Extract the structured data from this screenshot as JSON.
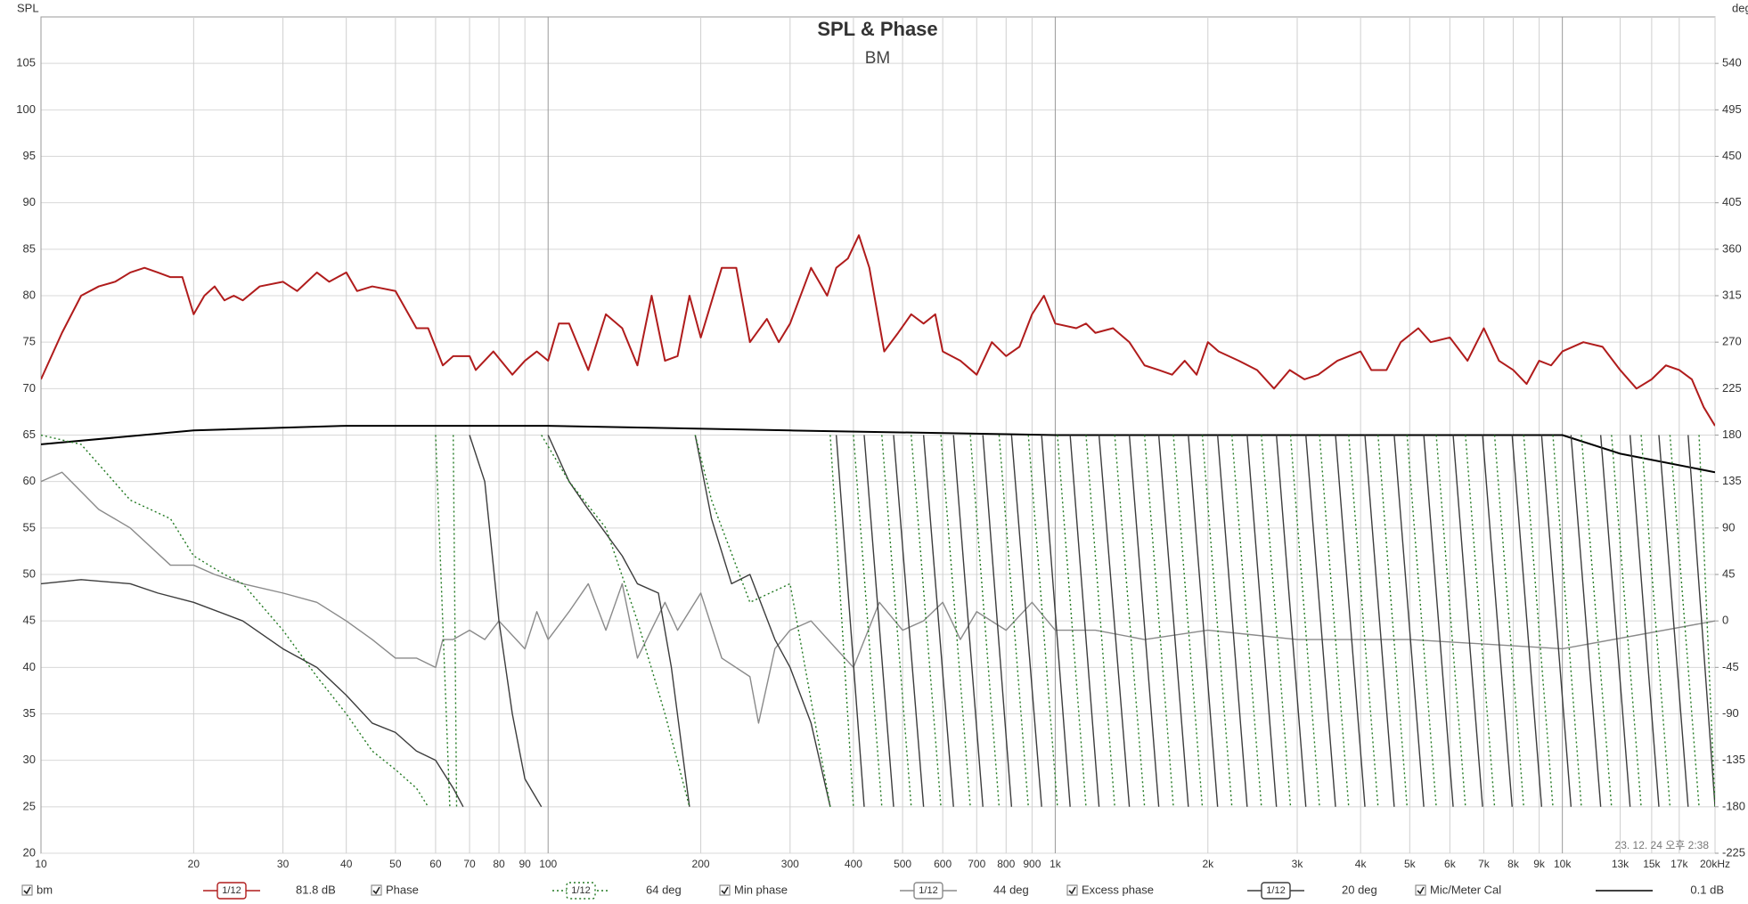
{
  "chart_data": {
    "type": "line",
    "title": "SPL & Phase",
    "subtitle": "BM",
    "y_label": "SPL",
    "y2_label": "deg",
    "timestamp": "23. 12. 24 오후 2:38",
    "xscale": "log",
    "grid": true,
    "xlim": [
      10,
      20000
    ],
    "ylim": [
      20,
      110
    ],
    "y2lim": [
      -225,
      585
    ],
    "xticks": [
      10,
      20,
      30,
      40,
      50,
      60,
      70,
      80,
      90,
      100,
      200,
      300,
      400,
      500,
      600,
      700,
      800,
      900,
      {
        "value": 1000,
        "label": "1k"
      },
      {
        "value": 2000,
        "label": "2k"
      },
      {
        "value": 3000,
        "label": "3k"
      },
      {
        "value": 4000,
        "label": "4k"
      },
      {
        "value": 5000,
        "label": "5k"
      },
      {
        "value": 6000,
        "label": "6k"
      },
      {
        "value": 7000,
        "label": "7k"
      },
      {
        "value": 8000,
        "label": "8k"
      },
      {
        "value": 9000,
        "label": "9k"
      },
      {
        "value": 10000,
        "label": "10k"
      },
      {
        "value": 13000,
        "label": "13k"
      },
      {
        "value": 15000,
        "label": "15k"
      },
      {
        "value": 17000,
        "label": "17k"
      },
      {
        "value": 20000,
        "label": "20kHz"
      }
    ],
    "yticks": [
      20,
      25,
      30,
      35,
      40,
      45,
      50,
      55,
      60,
      65,
      70,
      75,
      80,
      85,
      90,
      95,
      100,
      105
    ],
    "y2ticks": [
      -225,
      -180,
      -135,
      -90,
      -45,
      0,
      45,
      90,
      135,
      180,
      225,
      270,
      315,
      360,
      405,
      450,
      495,
      540
    ],
    "series": [
      {
        "name": "bm",
        "color": "#b01c1c",
        "axis": "y",
        "dash": "solid",
        "smoothing": "1/12",
        "readout": "81.8 dB",
        "x": [
          10,
          11,
          12,
          13,
          14,
          15,
          16,
          17,
          18,
          19,
          20,
          21,
          22,
          23,
          24,
          25,
          27,
          30,
          32,
          35,
          37,
          40,
          42,
          45,
          50,
          55,
          58,
          62,
          65,
          70,
          72,
          78,
          85,
          90,
          95,
          100,
          105,
          110,
          120,
          130,
          140,
          150,
          160,
          170,
          180,
          190,
          200,
          220,
          235,
          250,
          270,
          285,
          300,
          330,
          355,
          370,
          390,
          410,
          430,
          460,
          490,
          520,
          550,
          580,
          600,
          650,
          700,
          750,
          800,
          850,
          900,
          950,
          1000,
          1100,
          1150,
          1200,
          1300,
          1400,
          1500,
          1600,
          1700,
          1800,
          1900,
          2000,
          2100,
          2300,
          2500,
          2700,
          2900,
          3100,
          3300,
          3600,
          4000,
          4200,
          4500,
          4800,
          5200,
          5500,
          6000,
          6500,
          7000,
          7500,
          8000,
          8500,
          9000,
          9500,
          10000,
          11000,
          12000,
          13000,
          14000,
          15000,
          16000,
          17000,
          18000,
          19000,
          20000
        ],
        "values": [
          71,
          76,
          80,
          81,
          81.5,
          82.5,
          83,
          82.5,
          82,
          82,
          78,
          80,
          81,
          79.5,
          80,
          79.5,
          81,
          81.5,
          80.5,
          82.5,
          81.5,
          82.5,
          80.5,
          81,
          80.5,
          76.5,
          76.5,
          72.5,
          73.5,
          73.5,
          72,
          74,
          71.5,
          73,
          74,
          73,
          77,
          77,
          72,
          78,
          76.5,
          72.5,
          80,
          73,
          73.5,
          80,
          75.5,
          83,
          83,
          75,
          77.5,
          75,
          77,
          83,
          80,
          83,
          84,
          86.5,
          83,
          74,
          76,
          78,
          77,
          78,
          74,
          73,
          71.5,
          75,
          73.5,
          74.5,
          78,
          80,
          77,
          76.5,
          77,
          76,
          76.5,
          75,
          72.5,
          72,
          71.5,
          73,
          71.5,
          75,
          74,
          73,
          72,
          70,
          72,
          71,
          71.5,
          73,
          74,
          72,
          72,
          75,
          76.5,
          75,
          75.5,
          73,
          76.5,
          73,
          72,
          70.5,
          73,
          72.5,
          74,
          75,
          74.5,
          72,
          70,
          71,
          72.5,
          72,
          71,
          68,
          66
        ]
      },
      {
        "name": "Phase",
        "color": "#237a23",
        "axis": "y2",
        "dash": "dotted",
        "smoothing": "1/12",
        "readout": "64 deg",
        "x": [
          10,
          12,
          15,
          18,
          20,
          23,
          25,
          30,
          35,
          40,
          45,
          50,
          55,
          58,
          58,
          60,
          64,
          64,
          65,
          66,
          66,
          97,
          110,
          130,
          150,
          170,
          190,
          190,
          195,
          210,
          250,
          300,
          360,
          360,
          360,
          400,
          400,
          400,
          455,
          455,
          455,
          520,
          520,
          520,
          595,
          595,
          595,
          680,
          680,
          680,
          775,
          775,
          775,
          885,
          885,
          885,
          1010,
          1010,
          1010,
          1150,
          1150,
          1150,
          1310,
          1310,
          1310,
          1500,
          1500,
          1500,
          1710,
          1710,
          1710,
          1950,
          1950,
          1950,
          2230,
          2230,
          2230,
          2550,
          2550,
          2550,
          2910,
          2910,
          2910,
          3320,
          3320,
          3320,
          3790,
          3790,
          3790,
          4330,
          4330,
          4330,
          4940,
          4940,
          4940,
          5640,
          5640,
          5640,
          6440,
          6440,
          6440,
          7350,
          7350,
          7350,
          8390,
          8390,
          8390,
          9580,
          9580,
          9580,
          10900,
          10900,
          10900,
          12500,
          12500,
          12500,
          14300,
          14300,
          14300,
          16300,
          16300,
          16300,
          18600,
          18600,
          18600,
          20000,
          20000
        ],
        "values": [
          180,
          171,
          117,
          99,
          63,
          45,
          36,
          -9,
          -54,
          -90,
          -126,
          -144,
          -162,
          -180,
          null,
          180,
          -180,
          null,
          180,
          -180,
          null,
          180,
          135,
          90,
          0,
          -90,
          -180,
          null,
          180,
          117,
          18,
          36,
          -180,
          null,
          180,
          -180,
          null,
          180,
          -180,
          null,
          180,
          -180,
          null,
          180,
          -180,
          null,
          180,
          -180,
          null,
          180,
          -180,
          null,
          180,
          -180,
          null,
          180,
          -180,
          null,
          180,
          -180,
          null,
          180,
          -180,
          null,
          180,
          -180,
          null,
          180,
          -180,
          null,
          180,
          -180,
          null,
          180,
          -180,
          null,
          180,
          -180,
          null,
          180,
          -180,
          null,
          180,
          -180,
          null,
          180,
          -180,
          null,
          180,
          -180,
          null,
          180,
          -180,
          null,
          180,
          -180,
          null,
          180,
          -180,
          null,
          180,
          -180,
          null,
          180,
          -180,
          null,
          180,
          -180,
          null,
          180,
          -180,
          null,
          180,
          -180,
          null,
          180,
          -180,
          null,
          180,
          -180,
          null,
          180,
          -180,
          null,
          180,
          -180,
          null
        ]
      },
      {
        "name": "Min phase",
        "color": "#8a8a8a",
        "axis": "y2",
        "dash": "solid",
        "smoothing": "1/12",
        "readout": "44 deg",
        "x": [
          10,
          11,
          13,
          15,
          18,
          20,
          22,
          25,
          30,
          35,
          40,
          45,
          50,
          55,
          60,
          62,
          65,
          70,
          75,
          80,
          90,
          95,
          100,
          110,
          120,
          130,
          140,
          150,
          170,
          180,
          200,
          220,
          250,
          260,
          280,
          300,
          330,
          370,
          400,
          450,
          500,
          550,
          600,
          650,
          700,
          800,
          900,
          1000,
          1200,
          1500,
          2000,
          3000,
          5000,
          10000,
          20000
        ],
        "values": [
          135,
          144,
          108,
          90,
          54,
          54,
          45,
          36,
          27,
          18,
          0,
          -18,
          -36,
          -36,
          -45,
          -18,
          -18,
          -9,
          -18,
          0,
          -27,
          9,
          -18,
          9,
          36,
          -9,
          36,
          -36,
          18,
          -9,
          27,
          -36,
          -54,
          -99,
          -27,
          -9,
          0,
          -27,
          -45,
          18,
          -9,
          0,
          18,
          -18,
          9,
          -9,
          18,
          -9,
          -9,
          -18,
          -9,
          -18,
          -18,
          -27,
          0
        ]
      },
      {
        "name": "Excess phase",
        "color": "#3c3c3c",
        "axis": "y2",
        "dash": "solid",
        "smoothing": "1/12",
        "readout": "20 deg",
        "x": [
          10,
          12,
          15,
          17,
          20,
          25,
          30,
          35,
          40,
          45,
          50,
          55,
          60,
          65,
          68,
          68,
          70,
          75,
          80,
          85,
          90,
          97,
          97,
          100,
          110,
          120,
          140,
          150,
          165,
          175,
          190,
          190,
          195,
          210,
          230,
          250,
          280,
          300,
          330,
          360,
          360,
          370,
          420,
          420,
          420,
          480,
          480,
          480,
          550,
          550,
          550,
          630,
          630,
          630,
          720,
          720,
          720,
          820,
          820,
          820,
          940,
          940,
          940,
          1070,
          1070,
          1070,
          1220,
          1220,
          1220,
          1400,
          1400,
          1400,
          1600,
          1600,
          1600,
          1830,
          1830,
          1830,
          2090,
          2090,
          2090,
          2390,
          2390,
          2390,
          2730,
          2730,
          2730,
          3120,
          3120,
          3120,
          3570,
          3570,
          3570,
          4080,
          4080,
          4080,
          4660,
          4660,
          4660,
          5330,
          5330,
          5330,
          6090,
          6090,
          6090,
          6960,
          6960,
          6960,
          7960,
          7960,
          7960,
          9100,
          9100,
          9100,
          10400,
          10400,
          10400,
          11900,
          11900,
          11900,
          13600,
          13600,
          13600,
          15500,
          15500,
          15500,
          17700,
          17700,
          17700,
          20000,
          20000
        ],
        "values": [
          36,
          40,
          36,
          27,
          18,
          0,
          -27,
          -45,
          -72,
          -99,
          -108,
          -126,
          -135,
          -162,
          -180,
          null,
          180,
          135,
          0,
          -90,
          -153,
          -180,
          null,
          180,
          135,
          108,
          63,
          36,
          27,
          -45,
          -180,
          null,
          180,
          99,
          36,
          45,
          -18,
          -45,
          -99,
          -180,
          null,
          180,
          -180,
          null,
          180,
          -180,
          null,
          180,
          -180,
          null,
          180,
          -180,
          null,
          180,
          -180,
          null,
          180,
          -180,
          null,
          180,
          -180,
          null,
          180,
          -180,
          null,
          180,
          -180,
          null,
          180,
          -180,
          null,
          180,
          -180,
          null,
          180,
          -180,
          null,
          180,
          -180,
          null,
          180,
          -180,
          null,
          180,
          -180,
          null,
          180,
          -180,
          null,
          180,
          -180,
          null,
          180,
          -180,
          null,
          180,
          -180,
          null,
          180,
          -180,
          null,
          180,
          -180,
          null,
          180,
          -180,
          null,
          180,
          -180,
          null,
          180,
          -180,
          null,
          180,
          -180,
          null,
          180,
          -180,
          null,
          180,
          -180,
          null,
          180,
          -180,
          null,
          180,
          -180,
          null,
          180,
          -180,
          null
        ]
      },
      {
        "name": "Mic/Meter Cal",
        "color": "#000000",
        "axis": "y",
        "dash": "solid",
        "readout": "0.1 dB",
        "x": [
          10,
          20,
          40,
          100,
          300,
          1000,
          3000,
          10000,
          13000,
          20000
        ],
        "values": [
          64,
          65.5,
          66,
          66,
          65.5,
          65,
          65,
          65,
          63,
          61
        ]
      }
    ]
  }
}
